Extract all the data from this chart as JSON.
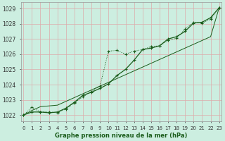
{
  "title": "Graphe pression niveau de la mer (hPa)",
  "xlabel_hours": [
    0,
    1,
    2,
    3,
    4,
    5,
    6,
    7,
    8,
    9,
    10,
    11,
    12,
    13,
    14,
    15,
    16,
    17,
    18,
    19,
    20,
    21,
    22,
    23
  ],
  "ylim": [
    1021.6,
    1029.4
  ],
  "yticks": [
    1022,
    1023,
    1024,
    1025,
    1026,
    1027,
    1028,
    1029
  ],
  "xlim": [
    -0.3,
    23.3
  ],
  "bg_color": "#cceee0",
  "grid_color": "#aaddcc",
  "line_color": "#1a5c1a",
  "line1_y": [
    1022.0,
    1022.5,
    1022.2,
    1022.2,
    1022.15,
    1022.4,
    1022.8,
    1023.2,
    1023.55,
    1023.9,
    1026.2,
    1026.25,
    1026.0,
    1026.2,
    1026.3,
    1026.5,
    1026.55,
    1026.9,
    1027.05,
    1027.65,
    1028.1,
    1028.05,
    1028.3,
    1029.05
  ],
  "line2_y": [
    1022.0,
    1022.2,
    1022.2,
    1022.15,
    1022.2,
    1022.45,
    1022.85,
    1023.3,
    1023.5,
    1023.75,
    1024.05,
    1024.6,
    1025.0,
    1025.6,
    1026.3,
    1026.4,
    1026.55,
    1027.0,
    1027.15,
    1027.5,
    1028.05,
    1028.1,
    1028.4,
    1029.05
  ],
  "line3_y": [
    1022.0,
    1022.3,
    1022.55,
    1022.6,
    1022.65,
    1022.9,
    1023.15,
    1023.4,
    1023.65,
    1023.9,
    1024.15,
    1024.4,
    1024.65,
    1024.9,
    1025.15,
    1025.4,
    1025.65,
    1025.9,
    1026.15,
    1026.4,
    1026.65,
    1026.9,
    1027.15,
    1029.05
  ]
}
